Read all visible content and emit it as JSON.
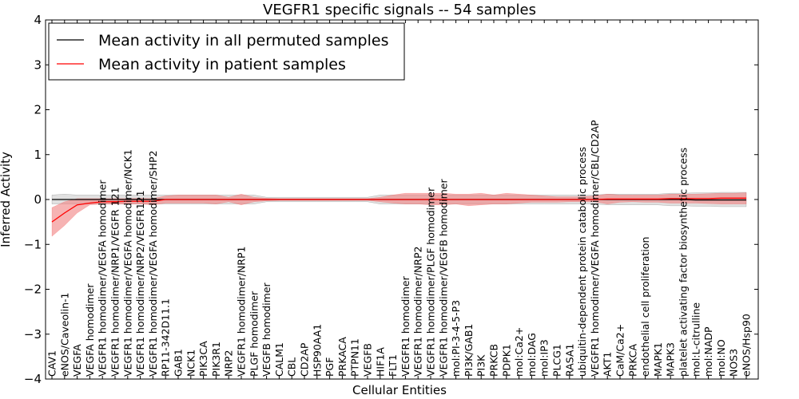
{
  "chart_data": {
    "type": "line",
    "title": "VEGFR1 specific signals -- 54 samples",
    "xlabel": "Cellular Entities",
    "ylabel": "Inferred Activity",
    "ylim": [
      -4,
      4
    ],
    "yticks": [
      -4,
      -3,
      -2,
      -1,
      0,
      1,
      2,
      3,
      4
    ],
    "legend_position": "top-left",
    "categories": [
      "CAV1",
      "eNOS/Caveolin-1",
      "VEGFA",
      "VEGFA homodimer",
      "VEGFR1 homodimer/VEGFA homodimer",
      "VEGFR1 homodimer/NRP1/VEGFR 121",
      "VEGFR1 homodimer/VEGFA homodimer/NCK1",
      "VEGFR1 homodimer/NRP2/VEGFR121",
      "VEGFR1 homodimer/VEGFA homodimer/SHP2",
      "RP11-342D11.1",
      "GAB1",
      "NCK1",
      "PIK3CA",
      "PIK3R1",
      "NRP2",
      "VEGFR1 homodimer/NRP1",
      "PLGF homodimer",
      "VEGFB homodimer",
      "CALM1",
      "CBL",
      "CD2AP",
      "HSP90AA1",
      "PGF",
      "PRKACA",
      "PTPN11",
      "VEGFB",
      "HIF1A",
      "FLT1",
      "VEGFR1 homodimer",
      "VEGFR1 homodimer/NRP2",
      "VEGFR1 homodimer/PLGF homodimer",
      "VEGFR1 homodimer/VEGFB homodimer",
      "mol:PI-3-4-5-P3",
      "PI3K/GAB1",
      "PI3K",
      "PRKCB",
      "PDPK1",
      "mol:Ca2+",
      "mol:DAG",
      "mol:IP3",
      "PLCG1",
      "RASA1",
      "ubiquitin-dependent protein catabolic process",
      "VEGFR1 homodimer/VEGFA homodimer/CBL/CD2AP",
      "AKT1",
      "CaM/Ca2+",
      "PRKCA",
      "endothelial cell proliferation",
      "MAPK1",
      "MAPK3",
      "platelet activating factor biosynthetic process",
      "mol:L-citrulline",
      "mol:NADP",
      "mol:NO",
      "NOS3",
      "eNOS/Hsp90"
    ],
    "series": [
      {
        "name": "Mean activity in all permuted samples",
        "color": "#000000",
        "band_color": "#bbbbbb",
        "values": [
          0.0,
          0.0,
          0.0,
          0.0,
          0.0,
          0.0,
          0.0,
          0.0,
          0.0,
          0.0,
          0.0,
          0.0,
          0.0,
          0.0,
          0.0,
          0.0,
          0.0,
          0.0,
          0.0,
          0.0,
          0.0,
          0.0,
          0.0,
          0.0,
          0.0,
          0.0,
          0.0,
          0.0,
          0.0,
          0.0,
          0.0,
          0.0,
          0.0,
          0.0,
          0.0,
          0.0,
          0.0,
          0.0,
          0.0,
          0.0,
          0.0,
          0.0,
          0.0,
          0.0,
          0.0,
          0.0,
          0.0,
          0.0,
          0.0,
          0.0,
          0.0,
          -0.01,
          -0.01,
          -0.01,
          -0.01,
          -0.01
        ],
        "lower": [
          -0.1,
          -0.1,
          -0.1,
          -0.1,
          -0.1,
          -0.1,
          -0.1,
          -0.1,
          -0.1,
          -0.1,
          -0.1,
          -0.1,
          -0.1,
          -0.1,
          -0.1,
          -0.1,
          -0.1,
          -0.05,
          -0.05,
          -0.05,
          -0.05,
          -0.05,
          -0.05,
          -0.05,
          -0.05,
          -0.05,
          -0.1,
          -0.1,
          -0.1,
          -0.1,
          -0.1,
          -0.1,
          -0.1,
          -0.1,
          -0.1,
          -0.1,
          -0.1,
          -0.1,
          -0.1,
          -0.1,
          -0.1,
          -0.1,
          -0.1,
          -0.1,
          -0.12,
          -0.12,
          -0.12,
          -0.12,
          -0.12,
          -0.14,
          -0.14,
          -0.15,
          -0.15,
          -0.16,
          -0.16,
          -0.16
        ],
        "upper": [
          0.1,
          0.12,
          0.1,
          0.1,
          0.1,
          0.1,
          0.1,
          0.1,
          0.1,
          0.1,
          0.1,
          0.1,
          0.1,
          0.1,
          0.1,
          0.1,
          0.1,
          0.05,
          0.05,
          0.05,
          0.05,
          0.05,
          0.05,
          0.05,
          0.05,
          0.05,
          0.1,
          0.1,
          0.1,
          0.1,
          0.1,
          0.1,
          0.1,
          0.1,
          0.1,
          0.1,
          0.1,
          0.1,
          0.1,
          0.1,
          0.1,
          0.1,
          0.1,
          0.1,
          0.12,
          0.12,
          0.12,
          0.12,
          0.12,
          0.14,
          0.14,
          0.15,
          0.15,
          0.16,
          0.16,
          0.16
        ]
      },
      {
        "name": "Mean activity in patient samples",
        "color": "#ff0000",
        "band_color": "#f08080",
        "values": [
          -0.5,
          -0.3,
          -0.12,
          -0.08,
          -0.05,
          -0.05,
          -0.04,
          -0.04,
          -0.04,
          0.0,
          0.0,
          0.0,
          0.0,
          0.0,
          0.0,
          0.0,
          0.0,
          0.0,
          0.0,
          0.0,
          0.0,
          0.0,
          0.0,
          0.0,
          0.0,
          0.0,
          0.0,
          0.0,
          0.0,
          0.0,
          0.0,
          0.0,
          0.0,
          0.0,
          0.0,
          0.0,
          0.0,
          0.0,
          0.0,
          0.0,
          0.0,
          0.0,
          0.0,
          0.0,
          0.01,
          0.01,
          0.01,
          0.01,
          0.01,
          0.02,
          0.02,
          0.02,
          0.02,
          0.03,
          0.03,
          0.03
        ],
        "lower": [
          -0.82,
          -0.58,
          -0.3,
          -0.12,
          -0.1,
          -0.1,
          -0.1,
          -0.1,
          -0.12,
          -0.08,
          -0.08,
          -0.08,
          -0.08,
          -0.1,
          -0.05,
          -0.12,
          -0.05,
          -0.03,
          -0.02,
          -0.02,
          -0.02,
          -0.02,
          -0.02,
          -0.02,
          -0.02,
          -0.02,
          -0.05,
          -0.08,
          -0.1,
          -0.1,
          -0.12,
          -0.12,
          -0.1,
          -0.14,
          -0.12,
          -0.1,
          -0.1,
          -0.08,
          -0.06,
          -0.06,
          -0.06,
          -0.05,
          -0.05,
          -0.05,
          -0.1,
          -0.06,
          -0.05,
          -0.06,
          -0.06,
          -0.08,
          -0.08,
          -0.08,
          -0.09,
          -0.1,
          -0.1,
          -0.1
        ],
        "upper": [
          -0.18,
          -0.05,
          0.02,
          0.02,
          0.02,
          0.02,
          0.02,
          0.03,
          0.02,
          0.08,
          0.1,
          0.1,
          0.1,
          0.1,
          0.05,
          0.12,
          0.05,
          0.03,
          0.02,
          0.02,
          0.02,
          0.02,
          0.02,
          0.02,
          0.02,
          0.02,
          0.05,
          0.1,
          0.14,
          0.14,
          0.14,
          0.14,
          0.12,
          0.12,
          0.14,
          0.1,
          0.14,
          0.12,
          0.1,
          0.08,
          0.06,
          0.06,
          0.06,
          0.08,
          0.12,
          0.1,
          0.1,
          0.1,
          0.1,
          0.12,
          0.12,
          0.12,
          0.13,
          0.14,
          0.14,
          0.15
        ]
      }
    ]
  }
}
